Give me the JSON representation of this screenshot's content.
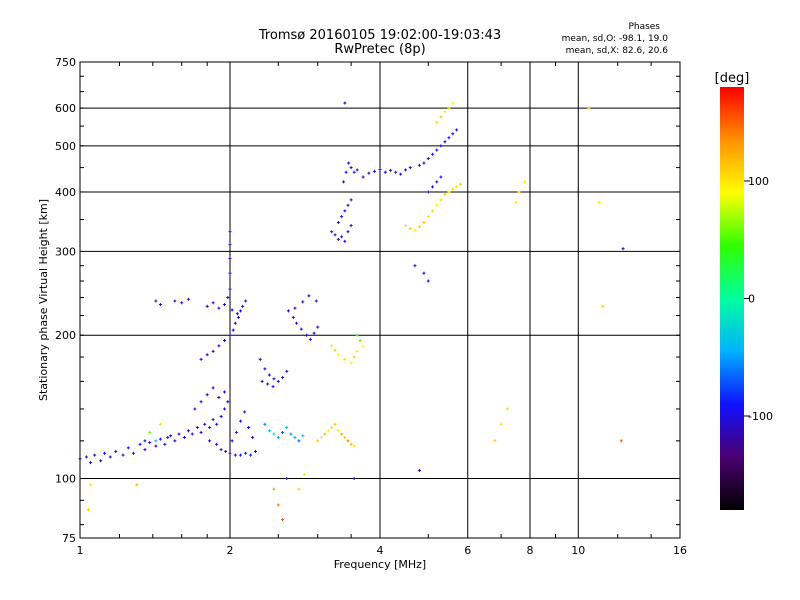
{
  "chart_data": {
    "type": "scatter",
    "title": "Tromsø 20160105 19:02:00-19:03:43",
    "subtitle": "RwPretec (8p)",
    "xlabel": "Frequency [MHz]",
    "ylabel": "Stationary phase Virtual Height [km]",
    "x_scale": "log",
    "y_scale": "log",
    "xlim": [
      1,
      16
    ],
    "ylim": [
      75,
      750
    ],
    "x_ticks": [
      1,
      2,
      4,
      6,
      8,
      10,
      16
    ],
    "x_tick_labels": [
      "1",
      "2",
      "4",
      "6",
      "8",
      "10",
      "16"
    ],
    "y_ticks": [
      75,
      100,
      200,
      300,
      400,
      500,
      600,
      750
    ],
    "y_tick_labels": [
      "75",
      "100",
      "200",
      "300",
      "400",
      "500",
      "600",
      "750"
    ],
    "grid": true,
    "colorbar": {
      "label": "[deg]",
      "range": [
        -180,
        180
      ],
      "ticks": [
        100,
        0,
        -100
      ],
      "tick_labels": [
        "100",
        "0",
        "-100"
      ],
      "colors": [
        "#000000",
        "#4b0070",
        "#1010ff",
        "#00b0ff",
        "#00ffa0",
        "#30ff00",
        "#ffff00",
        "#ff9000",
        "#ff0000"
      ]
    },
    "stats": {
      "heading": "Phases",
      "o_line": "mean, sd,O: -98.1, 19.0",
      "x_line": "mean, sd,X:  82.6, 20.6"
    },
    "point_color_scale": "colorbar",
    "series": [
      {
        "points": [
          [
            1.0,
            110,
            -95
          ],
          [
            1.03,
            111,
            -100
          ],
          [
            1.05,
            108,
            -92
          ],
          [
            1.07,
            112,
            -105
          ],
          [
            1.1,
            109,
            -98
          ],
          [
            1.12,
            113,
            -88
          ],
          [
            1.15,
            111,
            -102
          ],
          [
            1.18,
            114,
            -96
          ],
          [
            1.22,
            112,
            -110
          ],
          [
            1.25,
            116,
            -94
          ],
          [
            1.28,
            113,
            -100
          ],
          [
            1.32,
            118,
            -90
          ],
          [
            1.35,
            115,
            -103
          ],
          [
            1.38,
            119,
            -97
          ],
          [
            1.42,
            117,
            -108
          ],
          [
            1.45,
            121,
            -95
          ],
          [
            1.48,
            118,
            -101
          ],
          [
            1.52,
            123,
            -92
          ],
          [
            1.55,
            120,
            -106
          ],
          [
            1.58,
            124,
            -99
          ],
          [
            1.62,
            122,
            -104
          ],
          [
            1.65,
            126,
            -93
          ],
          [
            1.68,
            124,
            -100
          ],
          [
            1.72,
            128,
            -96
          ],
          [
            1.75,
            125,
            -107
          ],
          [
            1.78,
            130,
            -94
          ],
          [
            1.82,
            128,
            -102
          ],
          [
            1.85,
            133,
            -98
          ],
          [
            1.88,
            130,
            -105
          ],
          [
            1.92,
            135,
            -91
          ],
          [
            1.95,
            140,
            -100
          ],
          [
            1.98,
            145,
            -103
          ],
          [
            1.7,
            140,
            -99
          ],
          [
            1.75,
            145,
            -95
          ],
          [
            1.8,
            150,
            -104
          ],
          [
            1.85,
            155,
            -97
          ],
          [
            1.9,
            148,
            -101
          ],
          [
            1.95,
            152,
            -93
          ],
          [
            1.82,
            120,
            -108
          ],
          [
            1.88,
            118,
            -96
          ],
          [
            1.92,
            115,
            -100
          ],
          [
            1.96,
            114,
            -94
          ],
          [
            2.0,
            113,
            -99
          ],
          [
            2.05,
            112,
            -103
          ],
          [
            2.1,
            112,
            -97
          ],
          [
            2.15,
            113,
            -101
          ],
          [
            2.2,
            112,
            -95
          ],
          [
            2.25,
            114,
            -106
          ],
          [
            2.02,
            120,
            -98
          ],
          [
            2.06,
            125,
            -102
          ],
          [
            2.1,
            132,
            -96
          ],
          [
            2.14,
            138,
            -104
          ],
          [
            2.18,
            128,
            -100
          ],
          [
            2.22,
            122,
            -93
          ],
          [
            1.75,
            178,
            -100
          ],
          [
            1.8,
            182,
            -96
          ],
          [
            1.85,
            185,
            -104
          ],
          [
            1.9,
            190,
            -98
          ],
          [
            1.95,
            195,
            -102
          ],
          [
            2.0,
            200,
            -95
          ],
          [
            2.03,
            205,
            -100
          ],
          [
            2.05,
            212,
            -103
          ],
          [
            2.08,
            218,
            -97
          ],
          [
            2.1,
            225,
            -101
          ],
          [
            2.12,
            230,
            -95
          ],
          [
            2.15,
            236,
            -99
          ],
          [
            1.98,
            240,
            -104
          ],
          [
            2.0,
            250,
            -98
          ],
          [
            2.0,
            270,
            -102
          ],
          [
            2.0,
            290,
            -96
          ],
          [
            2.0,
            310,
            -100
          ],
          [
            2.0,
            330,
            -106
          ],
          [
            1.95,
            232,
            -97
          ],
          [
            2.02,
            226,
            -103
          ],
          [
            2.07,
            222,
            -99
          ],
          [
            1.9,
            228,
            -101
          ],
          [
            1.85,
            234,
            -94
          ],
          [
            1.8,
            230,
            -105
          ],
          [
            1.65,
            238,
            -99
          ],
          [
            1.6,
            234,
            -102
          ],
          [
            1.55,
            236,
            -96
          ],
          [
            1.45,
            232,
            -100
          ],
          [
            1.42,
            236,
            -104
          ],
          [
            2.3,
            178,
            -110
          ],
          [
            2.35,
            170,
            -104
          ],
          [
            2.4,
            165,
            -98
          ],
          [
            2.45,
            162,
            -101
          ],
          [
            2.5,
            160,
            -95
          ],
          [
            2.55,
            163,
            -103
          ],
          [
            2.6,
            168,
            -99
          ],
          [
            2.32,
            160,
            -97
          ],
          [
            2.38,
            158,
            -102
          ],
          [
            2.44,
            156,
            -94
          ],
          [
            2.35,
            130,
            -60
          ],
          [
            2.4,
            126,
            -40
          ],
          [
            2.45,
            124,
            -20
          ],
          [
            2.5,
            122,
            -50
          ],
          [
            2.55,
            125,
            -70
          ],
          [
            2.6,
            128,
            -30
          ],
          [
            2.65,
            124,
            -55
          ],
          [
            2.7,
            122,
            -45
          ],
          [
            2.75,
            120,
            -65
          ],
          [
            2.8,
            123,
            -35
          ],
          [
            2.62,
            225,
            -100
          ],
          [
            2.68,
            218,
            -96
          ],
          [
            2.72,
            212,
            -103
          ],
          [
            2.78,
            206,
            -99
          ],
          [
            2.85,
            200,
            -101
          ],
          [
            2.9,
            196,
            -95
          ],
          [
            2.95,
            202,
            -104
          ],
          [
            3.0,
            208,
            -98
          ],
          [
            2.7,
            228,
            -102
          ],
          [
            2.8,
            235,
            -97
          ],
          [
            2.88,
            242,
            -100
          ],
          [
            2.98,
            236,
            -94
          ],
          [
            3.2,
            330,
            -100
          ],
          [
            3.25,
            325,
            -104
          ],
          [
            3.3,
            318,
            -98
          ],
          [
            3.35,
            322,
            -102
          ],
          [
            3.4,
            315,
            -95
          ],
          [
            3.45,
            330,
            -103
          ],
          [
            3.5,
            340,
            -99
          ],
          [
            3.3,
            345,
            -101
          ],
          [
            3.35,
            355,
            -96
          ],
          [
            3.4,
            365,
            -104
          ],
          [
            3.45,
            375,
            -98
          ],
          [
            3.5,
            385,
            -100
          ],
          [
            3.38,
            420,
            -102
          ],
          [
            3.42,
            440,
            -97
          ],
          [
            3.46,
            460,
            -103
          ],
          [
            3.5,
            450,
            -99
          ],
          [
            3.55,
            440,
            -101
          ],
          [
            3.6,
            445,
            -95
          ],
          [
            3.4,
            615,
            -100
          ],
          [
            3.7,
            430,
            -99
          ],
          [
            3.8,
            438,
            -103
          ],
          [
            3.9,
            442,
            -97
          ],
          [
            4.0,
            446,
            -101
          ],
          [
            4.1,
            440,
            -95
          ],
          [
            4.2,
            444,
            -104
          ],
          [
            4.3,
            440,
            -98
          ],
          [
            4.4,
            436,
            -102
          ],
          [
            4.5,
            445,
            -96
          ],
          [
            4.6,
            450,
            -100
          ],
          [
            4.8,
            455,
            -97
          ],
          [
            4.9,
            460,
            -103
          ],
          [
            5.0,
            470,
            -99
          ],
          [
            5.1,
            480,
            -101
          ],
          [
            5.2,
            490,
            -95
          ],
          [
            5.3,
            500,
            -104
          ],
          [
            5.4,
            510,
            -98
          ],
          [
            5.5,
            520,
            -102
          ],
          [
            5.6,
            530,
            -96
          ],
          [
            5.7,
            540,
            -100
          ],
          [
            5.0,
            400,
            -99
          ],
          [
            5.1,
            410,
            -103
          ],
          [
            5.2,
            420,
            -97
          ],
          [
            5.3,
            430,
            -101
          ],
          [
            4.7,
            280,
            -100
          ],
          [
            4.9,
            270,
            -96
          ],
          [
            5.0,
            260,
            -104
          ],
          [
            3.6,
            200,
            30
          ],
          [
            3.65,
            195,
            60
          ],
          [
            3.7,
            190,
            90
          ],
          [
            3.6,
            185,
            100
          ],
          [
            3.55,
            180,
            110
          ],
          [
            3.5,
            175,
            95
          ],
          [
            3.4,
            178,
            105
          ],
          [
            3.3,
            182,
            90
          ],
          [
            3.25,
            186,
            115
          ],
          [
            3.2,
            190,
            100
          ],
          [
            3.0,
            120,
            110
          ],
          [
            3.05,
            122,
            100
          ],
          [
            3.1,
            124,
            120
          ],
          [
            3.15,
            126,
            95
          ],
          [
            3.2,
            128,
            105
          ],
          [
            3.25,
            130,
            115
          ],
          [
            3.3,
            126,
            100
          ],
          [
            3.35,
            124,
            130
          ],
          [
            3.4,
            122,
            110
          ],
          [
            3.45,
            120,
            140
          ],
          [
            3.5,
            118,
            120
          ],
          [
            3.55,
            117,
            100
          ],
          [
            4.5,
            340,
            100
          ],
          [
            4.6,
            335,
            110
          ],
          [
            4.7,
            332,
            95
          ],
          [
            4.8,
            338,
            105
          ],
          [
            4.9,
            345,
            115
          ],
          [
            5.0,
            355,
            100
          ],
          [
            5.1,
            365,
            108
          ],
          [
            5.2,
            375,
            92
          ],
          [
            5.3,
            385,
            102
          ],
          [
            5.4,
            395,
            112
          ],
          [
            5.5,
            400,
            98
          ],
          [
            5.6,
            405,
            106
          ],
          [
            5.7,
            410,
            100
          ],
          [
            5.8,
            415,
            110
          ],
          [
            5.2,
            560,
            105
          ],
          [
            5.3,
            575,
            115
          ],
          [
            5.4,
            590,
            100
          ],
          [
            5.5,
            600,
            110
          ],
          [
            5.6,
            615,
            95
          ],
          [
            6.8,
            120,
            110
          ],
          [
            7.0,
            130,
            100
          ],
          [
            7.2,
            140,
            105
          ],
          [
            7.5,
            380,
            100
          ],
          [
            7.6,
            400,
            108
          ],
          [
            7.8,
            420,
            95
          ],
          [
            10.5,
            600,
            105
          ],
          [
            11.0,
            380,
            100
          ],
          [
            11.2,
            230,
            110
          ],
          [
            12.2,
            120,
            150
          ],
          [
            12.3,
            304,
            -100
          ],
          [
            2.45,
            95,
            130
          ],
          [
            2.5,
            88,
            140
          ],
          [
            2.55,
            82,
            150
          ],
          [
            1.05,
            97,
            100
          ],
          [
            1.04,
            86,
            110
          ],
          [
            1.3,
            97,
            120
          ],
          [
            1.35,
            120,
            -110
          ],
          [
            1.38,
            125,
            60
          ],
          [
            1.42,
            120,
            -40
          ],
          [
            1.45,
            130,
            100
          ],
          [
            1.5,
            122,
            -100
          ],
          [
            2.6,
            100,
            -100
          ],
          [
            2.75,
            95,
            110
          ],
          [
            2.82,
            102,
            100
          ],
          [
            3.55,
            100,
            -95
          ],
          [
            4.8,
            104,
            -100
          ]
        ]
      }
    ]
  }
}
